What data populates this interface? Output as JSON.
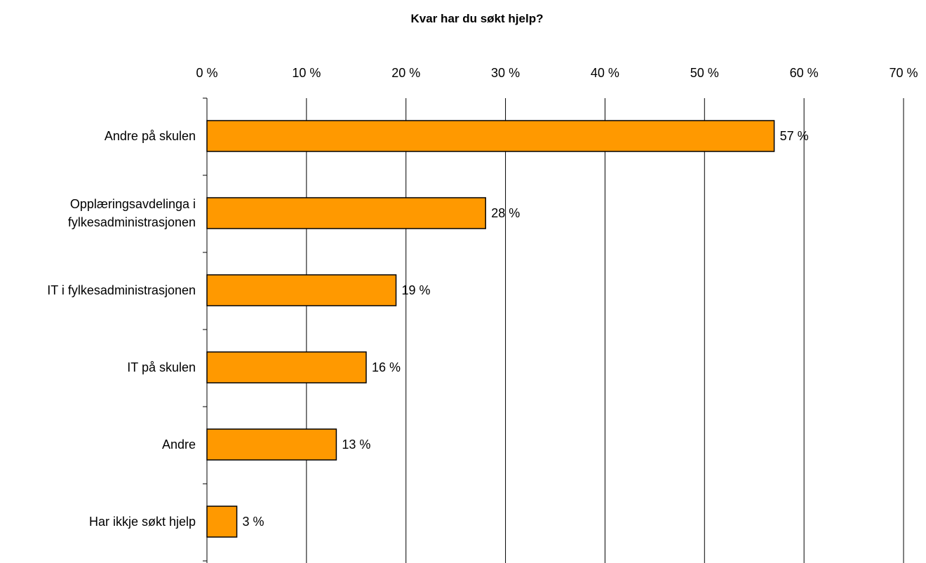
{
  "chart_data": {
    "type": "bar",
    "orientation": "horizontal",
    "title": "Kvar har du søkt hjelp?",
    "xlabel": "",
    "ylabel": "",
    "xlim": [
      0,
      70
    ],
    "x_ticks": [
      0,
      10,
      20,
      30,
      40,
      50,
      60,
      70
    ],
    "x_tick_labels": [
      "0 %",
      "10 %",
      "20 %",
      "30 %",
      "40 %",
      "50 %",
      "60 %",
      "70 %"
    ],
    "x_axis_position": "top",
    "grid": true,
    "legend": "none",
    "categories": [
      [
        "Andre på skulen"
      ],
      [
        "Opplæringsavdelinga i",
        "fylkesadministrasjonen"
      ],
      [
        "IT i fylkesadministrasjonen"
      ],
      [
        "IT på skulen"
      ],
      [
        "Andre"
      ],
      [
        "Har ikkje søkt hjelp"
      ]
    ],
    "values": [
      57,
      28,
      19,
      16,
      13,
      3
    ],
    "data_labels": [
      "57 %",
      "28 %",
      "19 %",
      "16 %",
      "13 %",
      "3 %"
    ],
    "colors": {
      "bar_fill": "#FF9900",
      "bar_stroke": "#000000",
      "grid": "#000000",
      "text": "#000000"
    }
  }
}
